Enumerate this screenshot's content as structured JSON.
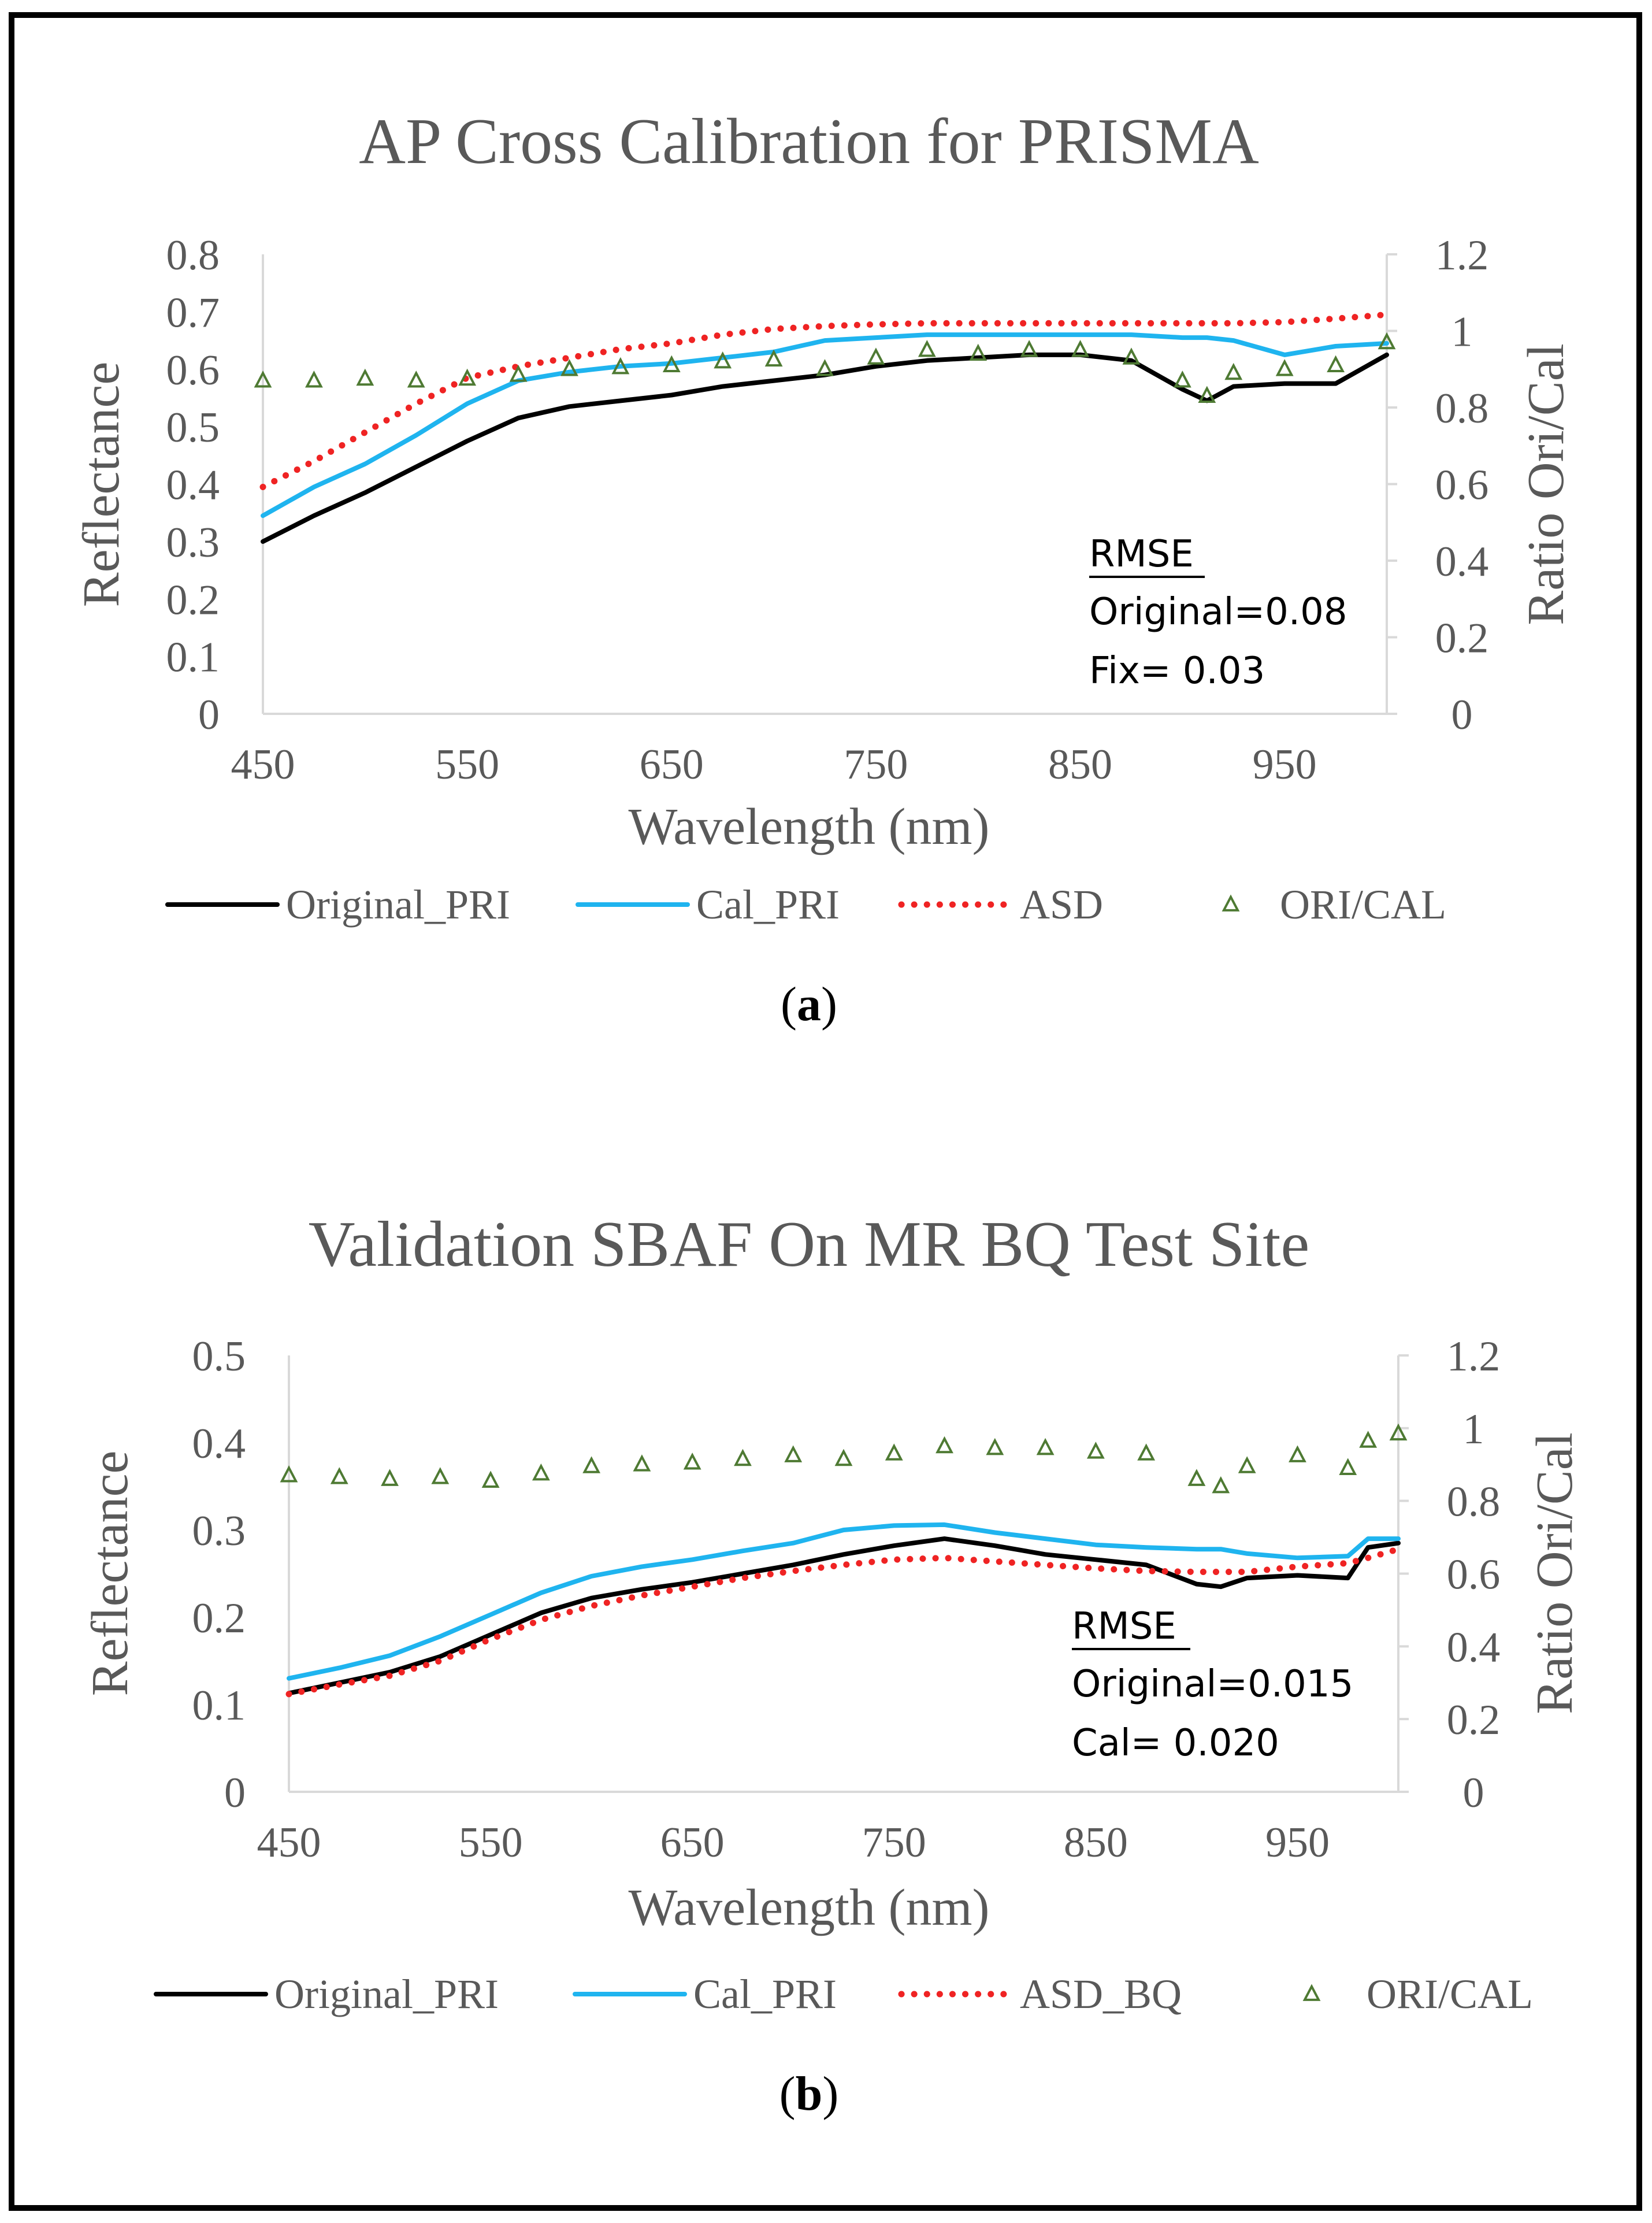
{
  "chart_data": [
    {
      "panel": "(a)",
      "panel_letter": "a",
      "type": "line",
      "title": "AP Cross Calibration for PRISMA",
      "xlabel": "Wavelength (nm)",
      "ylabel": "Reflectance",
      "y2label": "Ratio Ori/Cal",
      "xlim": [
        450,
        1000
      ],
      "ylim": [
        0,
        0.8
      ],
      "y2lim": [
        0,
        1.2
      ],
      "xticks": [
        "450",
        "550",
        "650",
        "750",
        "850",
        "950"
      ],
      "yticks": [
        "0",
        "0.1",
        "0.2",
        "0.3",
        "0.4",
        "0.5",
        "0.6",
        "0.7",
        "0.8"
      ],
      "y2ticks": [
        "0",
        "0.2",
        "0.4",
        "0.6",
        "0.8",
        "1",
        "1.2"
      ],
      "gridlines": false,
      "legend_position": "bottom",
      "annotation": {
        "heading": "RMSE",
        "line1": "Original=0.08",
        "line2": "Fix=  0.03"
      },
      "x": [
        450,
        475,
        500,
        525,
        550,
        575,
        600,
        625,
        650,
        675,
        700,
        725,
        750,
        775,
        800,
        825,
        850,
        875,
        900,
        912,
        925,
        950,
        975,
        1000
      ],
      "series": [
        {
          "name": "Original_PRI",
          "axis": "left",
          "style": "line",
          "color": "#000000",
          "values": [
            0.3,
            0.345,
            0.385,
            0.43,
            0.475,
            0.515,
            0.535,
            0.545,
            0.555,
            0.57,
            0.58,
            0.59,
            0.605,
            0.615,
            0.62,
            0.625,
            0.625,
            0.615,
            0.565,
            0.545,
            0.57,
            0.575,
            0.575,
            0.625
          ]
        },
        {
          "name": "Cal_PRI",
          "axis": "left",
          "style": "line",
          "color": "#1fb4ef",
          "values": [
            0.345,
            0.395,
            0.435,
            0.485,
            0.54,
            0.58,
            0.595,
            0.605,
            0.61,
            0.62,
            0.63,
            0.65,
            0.655,
            0.66,
            0.66,
            0.66,
            0.66,
            0.66,
            0.655,
            0.655,
            0.65,
            0.625,
            0.64,
            0.645
          ]
        },
        {
          "name": "ASD",
          "axis": "left",
          "style": "dotted",
          "color": "#ef2323",
          "values": [
            0.395,
            0.44,
            0.49,
            0.54,
            0.585,
            0.605,
            0.62,
            0.635,
            0.645,
            0.66,
            0.67,
            0.675,
            0.678,
            0.68,
            0.68,
            0.68,
            0.68,
            0.68,
            0.68,
            0.68,
            0.68,
            0.682,
            0.688,
            0.695
          ]
        },
        {
          "name": "ORI/CAL",
          "axis": "right",
          "style": "markers",
          "color": "#4e7a33",
          "values": [
            0.87,
            0.87,
            0.875,
            0.87,
            0.875,
            0.885,
            0.9,
            0.905,
            0.91,
            0.92,
            0.925,
            0.9,
            0.93,
            0.95,
            0.94,
            0.95,
            0.95,
            0.93,
            0.87,
            0.83,
            0.89,
            0.9,
            0.91,
            0.97
          ]
        }
      ],
      "legend": [
        "Original_PRI",
        "Cal_PRI",
        "ASD",
        "ORI/CAL"
      ]
    },
    {
      "panel": "(b)",
      "panel_letter": "b",
      "type": "line",
      "title": "Validation SBAF  On MR BQ Test Site",
      "xlabel": "Wavelength (nm)",
      "ylabel": "Reflectance",
      "y2label": "Ratio Ori/Cal",
      "xlim": [
        450,
        1000
      ],
      "ylim": [
        0,
        0.5
      ],
      "y2lim": [
        0,
        1.2
      ],
      "xticks": [
        "450",
        "550",
        "650",
        "750",
        "850",
        "950"
      ],
      "yticks": [
        "0",
        "0.1",
        "0.2",
        "0.3",
        "0.4",
        "0.5"
      ],
      "y2ticks": [
        "0",
        "0.2",
        "0.4",
        "0.6",
        "0.8",
        "1",
        "1.2"
      ],
      "gridlines": false,
      "legend_position": "bottom",
      "annotation": {
        "heading": "RMSE",
        "line1": "Original=0.015",
        "line2": "Cal=  0.020"
      },
      "x": [
        450,
        475,
        500,
        525,
        550,
        575,
        600,
        625,
        650,
        675,
        700,
        725,
        750,
        775,
        800,
        825,
        850,
        875,
        900,
        912,
        925,
        950,
        975,
        985,
        1000
      ],
      "series": [
        {
          "name": "Original_PRI",
          "axis": "left",
          "style": "line",
          "color": "#000000",
          "values": [
            0.113,
            0.125,
            0.137,
            0.155,
            0.18,
            0.205,
            0.222,
            0.232,
            0.24,
            0.25,
            0.26,
            0.272,
            0.282,
            0.29,
            0.282,
            0.272,
            0.266,
            0.26,
            0.238,
            0.235,
            0.245,
            0.248,
            0.245,
            0.28,
            0.285
          ]
        },
        {
          "name": "Cal_PRI",
          "axis": "left",
          "style": "line",
          "color": "#1fb4ef",
          "values": [
            0.13,
            0.142,
            0.156,
            0.178,
            0.203,
            0.228,
            0.247,
            0.258,
            0.266,
            0.276,
            0.285,
            0.3,
            0.305,
            0.306,
            0.297,
            0.29,
            0.283,
            0.28,
            0.278,
            0.278,
            0.273,
            0.268,
            0.27,
            0.29,
            0.29
          ]
        },
        {
          "name": "ASD_BQ",
          "axis": "left",
          "style": "dotted",
          "color": "#ef2323",
          "values": [
            0.112,
            0.123,
            0.133,
            0.15,
            0.175,
            0.197,
            0.213,
            0.225,
            0.235,
            0.245,
            0.253,
            0.26,
            0.266,
            0.268,
            0.264,
            0.26,
            0.256,
            0.253,
            0.252,
            0.252,
            0.252,
            0.258,
            0.262,
            0.268,
            0.278
          ]
        },
        {
          "name": "ORI/CAL",
          "axis": "right",
          "style": "markers",
          "color": "#4e7a33",
          "values": [
            0.87,
            0.865,
            0.86,
            0.865,
            0.855,
            0.875,
            0.895,
            0.9,
            0.905,
            0.915,
            0.925,
            0.915,
            0.93,
            0.95,
            0.945,
            0.945,
            0.935,
            0.93,
            0.86,
            0.84,
            0.895,
            0.925,
            0.89,
            0.965,
            0.985
          ]
        }
      ],
      "legend": [
        "Original_PRI",
        "Cal_PRI",
        "ASD_BQ",
        "ORI/CAL"
      ]
    }
  ]
}
